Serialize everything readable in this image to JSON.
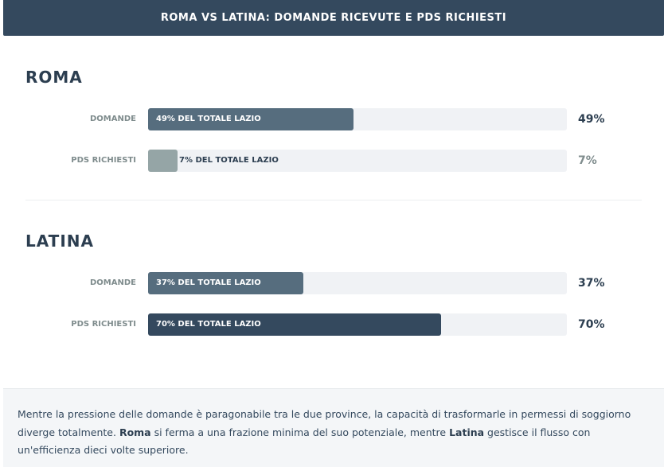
{
  "header": {
    "title": "ROMA VS LATINA: DOMANDE RICEVUTE E PDS RICHIESTI"
  },
  "chart_data": {
    "type": "bar",
    "orientation": "horizontal",
    "title": "ROMA VS LATINA: DOMANDE RICEVUTE E PDS RICHIESTI",
    "ylim": [
      0,
      100
    ],
    "groups": [
      {
        "name": "ROMA",
        "bars": [
          {
            "label": "DOMANDE",
            "value": 49,
            "bar_text": "49% DEL TOTALE LAZIO",
            "value_text": "49%",
            "color": "#566d7e",
            "text_color": "#ffffff",
            "value_color": "#2c3e50"
          },
          {
            "label": "PDS RICHIESTI",
            "value": 7,
            "bar_text": "7% DEL TOTALE LAZIO",
            "value_text": "7%",
            "color": "#95a5a6",
            "text_color": "#2c3e50",
            "value_color": "#7f8c8d"
          }
        ]
      },
      {
        "name": "LATINA",
        "bars": [
          {
            "label": "DOMANDE",
            "value": 37,
            "bar_text": "37% DEL TOTALE LAZIO",
            "value_text": "37%",
            "color": "#566d7e",
            "text_color": "#ffffff",
            "value_color": "#2c3e50"
          },
          {
            "label": "PDS RICHIESTI",
            "value": 70,
            "bar_text": "70% DEL TOTALE LAZIO",
            "value_text": "70%",
            "color": "#34495e",
            "text_color": "#ffffff",
            "value_color": "#2c3e50"
          }
        ]
      }
    ]
  },
  "footer": {
    "text_1": "Mentre la pressione delle domande è paragonabile tra le due province, la capacità di trasformarle in permessi di soggiorno diverge totalmente. ",
    "bold_1": "Roma",
    "text_2": " si ferma a una frazione minima del suo potenziale, mentre ",
    "bold_2": "Latina",
    "text_3": " gestisce il flusso con un'efficienza dieci volte superiore."
  }
}
